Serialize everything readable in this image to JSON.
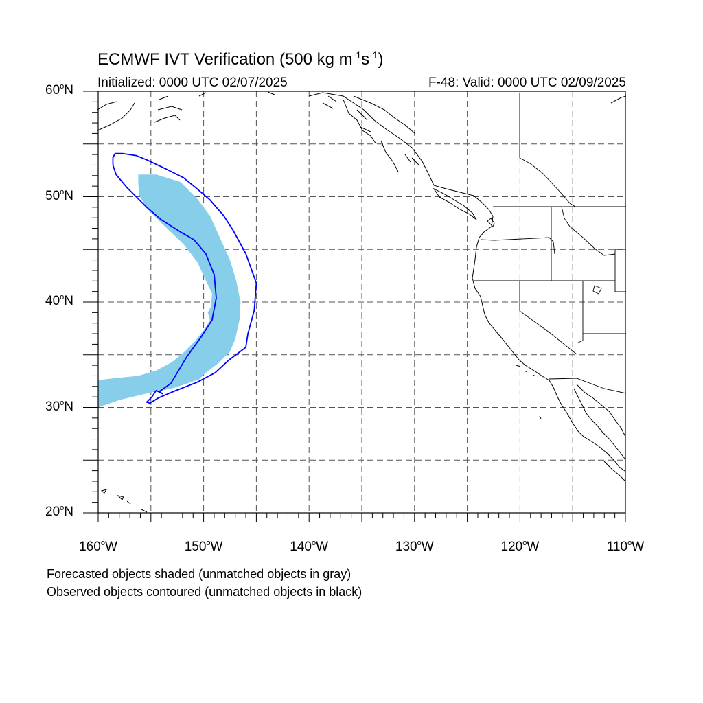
{
  "title": {
    "prefix": "ECMWF IVT Verification (500 kg m",
    "exp1": "-1",
    "mid": "s",
    "exp2": "-1",
    "suffix": ")"
  },
  "initialized": "Initialized: 0000 UTC 02/07/2025",
  "valid": "F-48: Valid: 0000 UTC 02/09/2025",
  "map": {
    "lon_range": [
      -160,
      -110
    ],
    "lat_range": [
      20,
      60
    ],
    "grid_lons": [
      -155,
      -150,
      -145,
      -140,
      -135,
      -130,
      -125,
      -120,
      -115
    ],
    "grid_lats": [
      25,
      30,
      35,
      40,
      45,
      50,
      55
    ],
    "grid_style": "dashed",
    "forecast_color": "#87ceeb",
    "observed_color": "#0000ff",
    "coastline_color": "#000000",
    "lat_ticks": [
      {
        "value": 60,
        "num": "60",
        "hemi": "N"
      },
      {
        "value": 50,
        "num": "50",
        "hemi": "N"
      },
      {
        "value": 40,
        "num": "40",
        "hemi": "N"
      },
      {
        "value": 30,
        "num": "30",
        "hemi": "N"
      },
      {
        "value": 20,
        "num": "20",
        "hemi": "N"
      }
    ],
    "lon_ticks": [
      {
        "value": -160,
        "num": "160",
        "hemi": "W"
      },
      {
        "value": -150,
        "num": "150",
        "hemi": "W"
      },
      {
        "value": -140,
        "num": "140",
        "hemi": "W"
      },
      {
        "value": -130,
        "num": "130",
        "hemi": "W"
      },
      {
        "value": -120,
        "num": "120",
        "hemi": "W"
      },
      {
        "value": -110,
        "num": "110",
        "hemi": "W"
      }
    ],
    "forecast_object": {
      "name": "forecast-ivt-object",
      "outline": [
        [
          -156.2,
          52.1
        ],
        [
          -154.5,
          52.1
        ],
        [
          -152.2,
          51.4
        ],
        [
          -150.6,
          49.8
        ],
        [
          -149.4,
          48.2
        ],
        [
          -148.5,
          46.2
        ],
        [
          -147.5,
          44.0
        ],
        [
          -146.9,
          42.0
        ],
        [
          -146.5,
          40.0
        ],
        [
          -146.6,
          38.3
        ],
        [
          -147.0,
          36.5
        ],
        [
          -147.5,
          35.3
        ],
        [
          -148.6,
          34.2
        ],
        [
          -149.9,
          33.2
        ],
        [
          -150.4,
          32.7
        ],
        [
          -151.5,
          32.3
        ],
        [
          -153.0,
          31.8
        ],
        [
          -155.5,
          31.3
        ],
        [
          -158.0,
          30.7
        ],
        [
          -160.0,
          30.0
        ],
        [
          -160.0,
          32.6
        ],
        [
          -158.2,
          32.8
        ],
        [
          -156.2,
          33.0
        ],
        [
          -154.5,
          33.5
        ],
        [
          -153.0,
          34.3
        ],
        [
          -151.8,
          35.3
        ],
        [
          -150.8,
          36.3
        ],
        [
          -149.8,
          37.6
        ],
        [
          -149.4,
          38.3
        ],
        [
          -149.6,
          39.0
        ],
        [
          -149.3,
          39.6
        ],
        [
          -149.2,
          40.8
        ],
        [
          -149.9,
          42.3
        ],
        [
          -150.6,
          43.8
        ],
        [
          -151.9,
          45.5
        ],
        [
          -153.8,
          47.3
        ],
        [
          -155.3,
          48.8
        ],
        [
          -156.1,
          50.1
        ],
        [
          -156.2,
          51.2
        ]
      ]
    },
    "observed_object": {
      "name": "observed-ivt-object",
      "outline": [
        [
          -158.6,
          53.7
        ],
        [
          -158.4,
          54.1
        ],
        [
          -157.7,
          54.1
        ],
        [
          -156.4,
          53.9
        ],
        [
          -155.4,
          53.5
        ],
        [
          -153.5,
          52.6
        ],
        [
          -151.9,
          51.8
        ],
        [
          -150.8,
          50.9
        ],
        [
          -149.4,
          49.7
        ],
        [
          -148.1,
          48.2
        ],
        [
          -147.2,
          46.8
        ],
        [
          -146.0,
          44.6
        ],
        [
          -145.0,
          41.8
        ],
        [
          -145.2,
          39.2
        ],
        [
          -145.8,
          37.0
        ],
        [
          -146.0,
          35.7
        ],
        [
          -147.6,
          34.5
        ],
        [
          -148.9,
          33.3
        ],
        [
          -150.6,
          32.4
        ],
        [
          -152.9,
          31.5
        ],
        [
          -154.3,
          30.9
        ],
        [
          -155.1,
          30.4
        ],
        [
          -155.4,
          30.5
        ],
        [
          -154.9,
          31.0
        ],
        [
          -154.5,
          31.6
        ],
        [
          -153.9,
          31.3
        ],
        [
          -154.2,
          31.5
        ],
        [
          -153.1,
          32.3
        ],
        [
          -151.6,
          34.8
        ],
        [
          -150.3,
          36.6
        ],
        [
          -149.2,
          38.3
        ],
        [
          -148.8,
          40.4
        ],
        [
          -149.0,
          42.6
        ],
        [
          -149.8,
          44.6
        ],
        [
          -150.9,
          45.9
        ],
        [
          -152.1,
          46.6
        ],
        [
          -154.0,
          47.8
        ],
        [
          -155.4,
          49.0
        ],
        [
          -157.3,
          50.9
        ],
        [
          -158.3,
          52.1
        ],
        [
          -158.6,
          53.0
        ]
      ]
    },
    "legend_notes": [
      "Forecasted objects shaded (unmatched objects in gray)",
      "Observed objects contoured (unmatched objects in black)"
    ]
  }
}
